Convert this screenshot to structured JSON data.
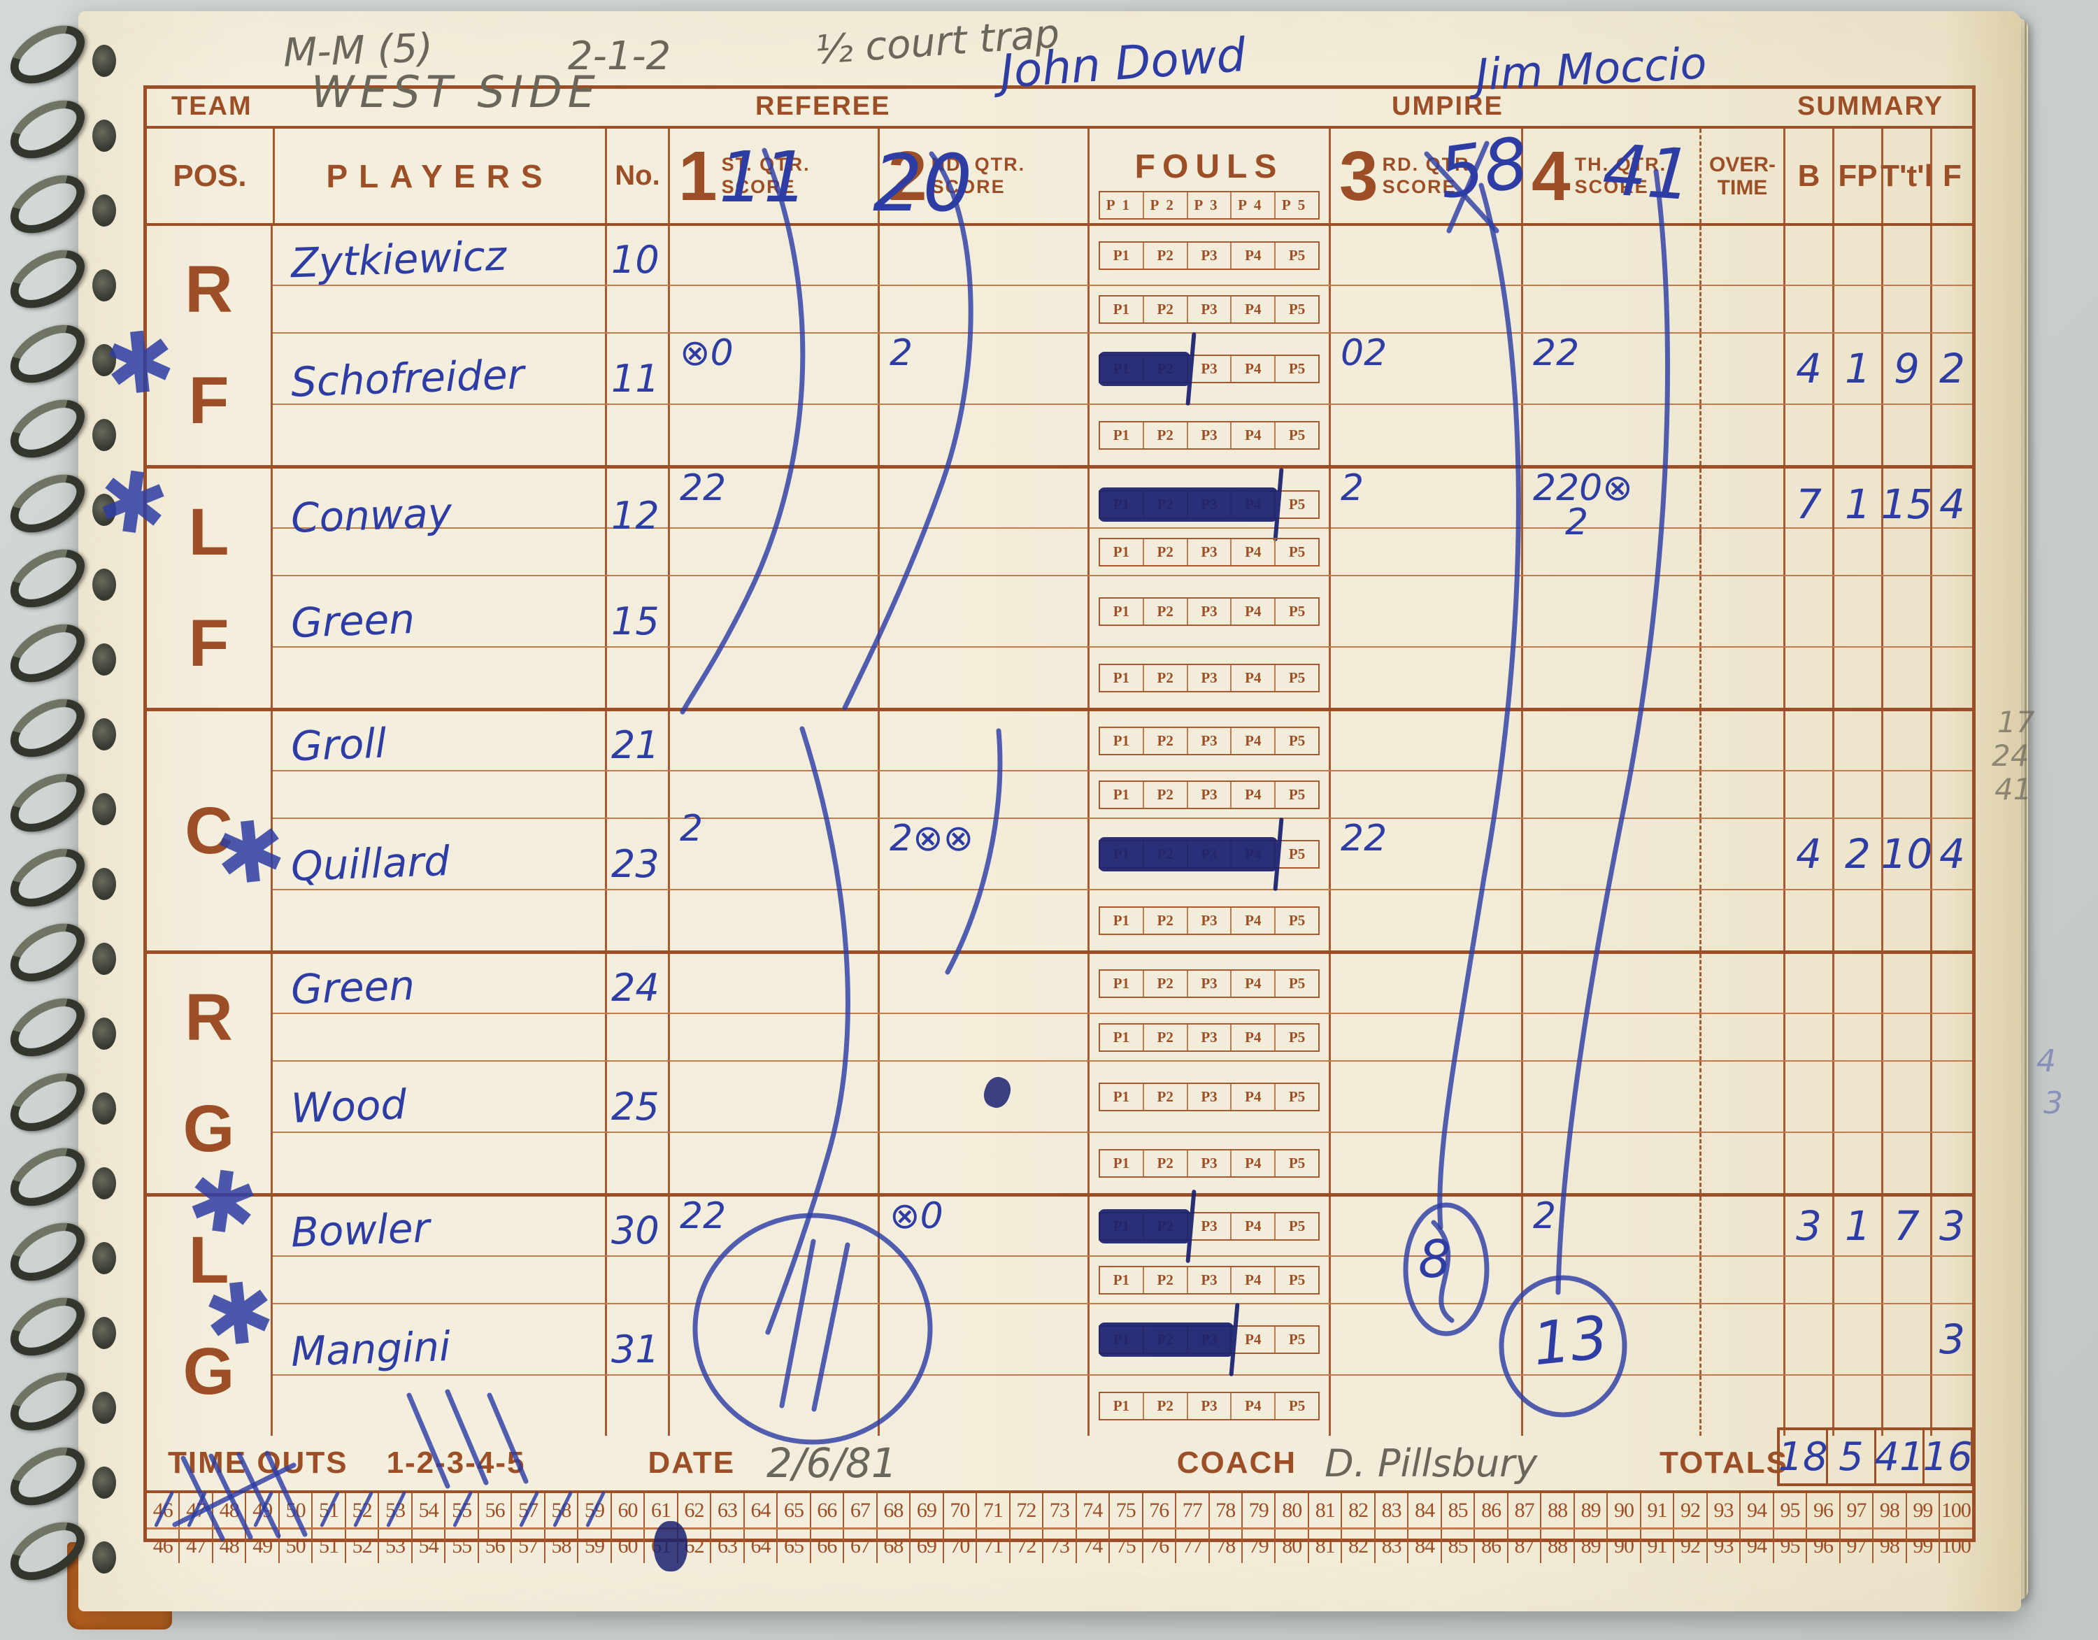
{
  "top_notes": {
    "defense_set": "M-M (5)",
    "zone": "2-1-2",
    "strategy": "½ court trap"
  },
  "header": {
    "team_label": "TEAM",
    "team_value": "WEST SIDE",
    "referee_label": "REFEREE",
    "referee_value": "John Dowd",
    "umpire_label": "UMPIRE",
    "umpire_value": "Jim Moccio",
    "summary_label": "SUMMARY"
  },
  "column_headers": {
    "pos": "POS.",
    "players": "PLAYERS",
    "no": "No.",
    "q1_big": "1",
    "q1_small": "ST. QTR.",
    "q2_big": "2",
    "q2_small": "ND. QTR.",
    "q3_big": "3",
    "q3_small": "RD. QTR.",
    "q4_big": "4",
    "q4_small": "TH. QTR.",
    "score": "SCORE",
    "fouls": "FOULS",
    "overtime_line1": "OVER-",
    "overtime_line2": "TIME",
    "b": "B",
    "fp": "FP",
    "ttl": "T't'l",
    "f": "F"
  },
  "quarter_scores": {
    "q1": "11",
    "q2": "20",
    "q3": "58",
    "q4": "41"
  },
  "foul_periods": [
    "P1",
    "P2",
    "P3",
    "P4",
    "P5"
  ],
  "sections": [
    {
      "pos_letters": [
        {
          "ch": "R",
          "star": false
        },
        {
          "ch": "F",
          "star": true
        }
      ],
      "rows": [
        {
          "type": "player",
          "name": "Zytkiewicz",
          "no": "10"
        },
        {
          "type": "blank"
        },
        {
          "type": "player",
          "name": "Schofreider",
          "no": "11",
          "q1": "⊗0",
          "q2": "2",
          "q3": "02",
          "q4": "22",
          "b": "4",
          "fp": "1",
          "ttl": "9",
          "f": "2",
          "foul_blot": 2
        },
        {
          "type": "blank"
        }
      ]
    },
    {
      "pos_letters": [
        {
          "ch": "L",
          "star": true
        },
        {
          "ch": "F",
          "star": false
        }
      ],
      "rows": [
        {
          "type": "player",
          "name": "Conway",
          "no": "12",
          "q1": "22",
          "q3": "2",
          "q4": "220⊗",
          "q4_below": "2",
          "b": "7",
          "fp": "1",
          "ttl": "15",
          "f": "4",
          "foul_blot": 4
        },
        {
          "type": "blank"
        },
        {
          "type": "player",
          "name": "Green",
          "no": "15"
        },
        {
          "type": "blank"
        }
      ]
    },
    {
      "pos_letters": [
        {
          "ch": "C",
          "star": false
        }
      ],
      "rows": [
        {
          "type": "player",
          "name": "Groll",
          "no": "21"
        },
        {
          "type": "blank"
        },
        {
          "type": "player",
          "name": "Quillard",
          "no": "23",
          "q1": "2",
          "q1_raised": true,
          "q2": "2⊗⊗",
          "q3": "22",
          "b": "4",
          "fp": "2",
          "ttl": "10",
          "f": "4",
          "foul_blot": 4
        },
        {
          "type": "blank"
        }
      ]
    },
    {
      "pos_letters": [
        {
          "ch": "R",
          "star": false
        },
        {
          "ch": "G",
          "star": false
        }
      ],
      "rows": [
        {
          "type": "player",
          "name": "Green",
          "no": "24"
        },
        {
          "type": "blank"
        },
        {
          "type": "player",
          "name": "Wood",
          "no": "25"
        },
        {
          "type": "blank"
        }
      ]
    },
    {
      "pos_letters": [
        {
          "ch": "L",
          "star": true
        },
        {
          "ch": "G",
          "star": true
        }
      ],
      "rows": [
        {
          "type": "player",
          "name": "Bowler",
          "no": "30",
          "q1": "22",
          "q2": "⊗0",
          "q4": "2",
          "b": "3",
          "fp": "1",
          "ttl": "7",
          "f": "3",
          "foul_blot": 2
        },
        {
          "type": "blank"
        },
        {
          "type": "player",
          "name": "Mangini",
          "no": "31",
          "f": "3",
          "foul_blot": 3
        },
        {
          "type": "blank"
        }
      ]
    }
  ],
  "footer": {
    "timeouts_label": "TIME OUTS",
    "timeouts_value": "1-2-3-4-5",
    "date_label": "DATE",
    "date_value": "2/6/81",
    "coach_label": "COACH",
    "coach_value": "D. Pillsbury",
    "totals_label": "TOTALS",
    "totals": {
      "b": "18",
      "fp": "5",
      "ttl": "41",
      "f": "16"
    }
  },
  "running_strip": {
    "start": 46,
    "end": 100,
    "crossed_first_row": [
      46,
      47,
      49,
      51,
      52,
      53,
      55,
      57,
      58,
      59
    ]
  },
  "margin_notes": {
    "pencil": [
      "17",
      "24",
      "41"
    ],
    "faint_blue": [
      "4",
      "3"
    ]
  },
  "ink_marks": {
    "asterisk": "✱",
    "circled_q3": "8",
    "circled_q4": "13"
  }
}
